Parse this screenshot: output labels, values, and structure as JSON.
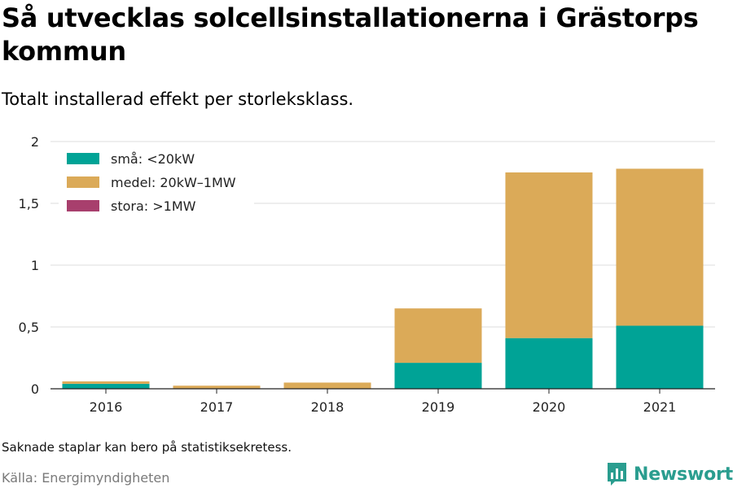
{
  "header": {
    "title": "Så utvecklas solcellsinstallationerna i Grästorps kommun",
    "subtitle": "Totalt installerad effekt per storleksklass."
  },
  "footer": {
    "note": "Saknade staplar kan bero på statistiksekretess.",
    "source": "Källa: Energimyndigheten",
    "brand": "Newsworthy",
    "brand_icon": "bar-chart-logo-icon",
    "brand_color": "#2a9d8f"
  },
  "chart_data": {
    "type": "bar",
    "stacked": true,
    "categories": [
      "2016",
      "2017",
      "2018",
      "2019",
      "2020",
      "2021"
    ],
    "series": [
      {
        "name": "små: <20kW",
        "color": "#00a396",
        "values": [
          0.04,
          0.0,
          0.0,
          0.21,
          0.41,
          0.51
        ]
      },
      {
        "name": "medel: 20kW–1MW",
        "color": "#dbaa58",
        "values": [
          0.02,
          0.025,
          0.05,
          0.44,
          1.34,
          1.27
        ]
      },
      {
        "name": "stora: >1MW",
        "color": "#a83f6d",
        "values": [
          0,
          0,
          0,
          0,
          0,
          0
        ]
      }
    ],
    "yticks": [
      "0",
      "0,5",
      "1",
      "1,5",
      "2"
    ],
    "ytick_values": [
      0,
      0.5,
      1,
      1.5,
      2
    ],
    "ylim": [
      0,
      2
    ],
    "grid": true,
    "legend_position": "top-left"
  }
}
